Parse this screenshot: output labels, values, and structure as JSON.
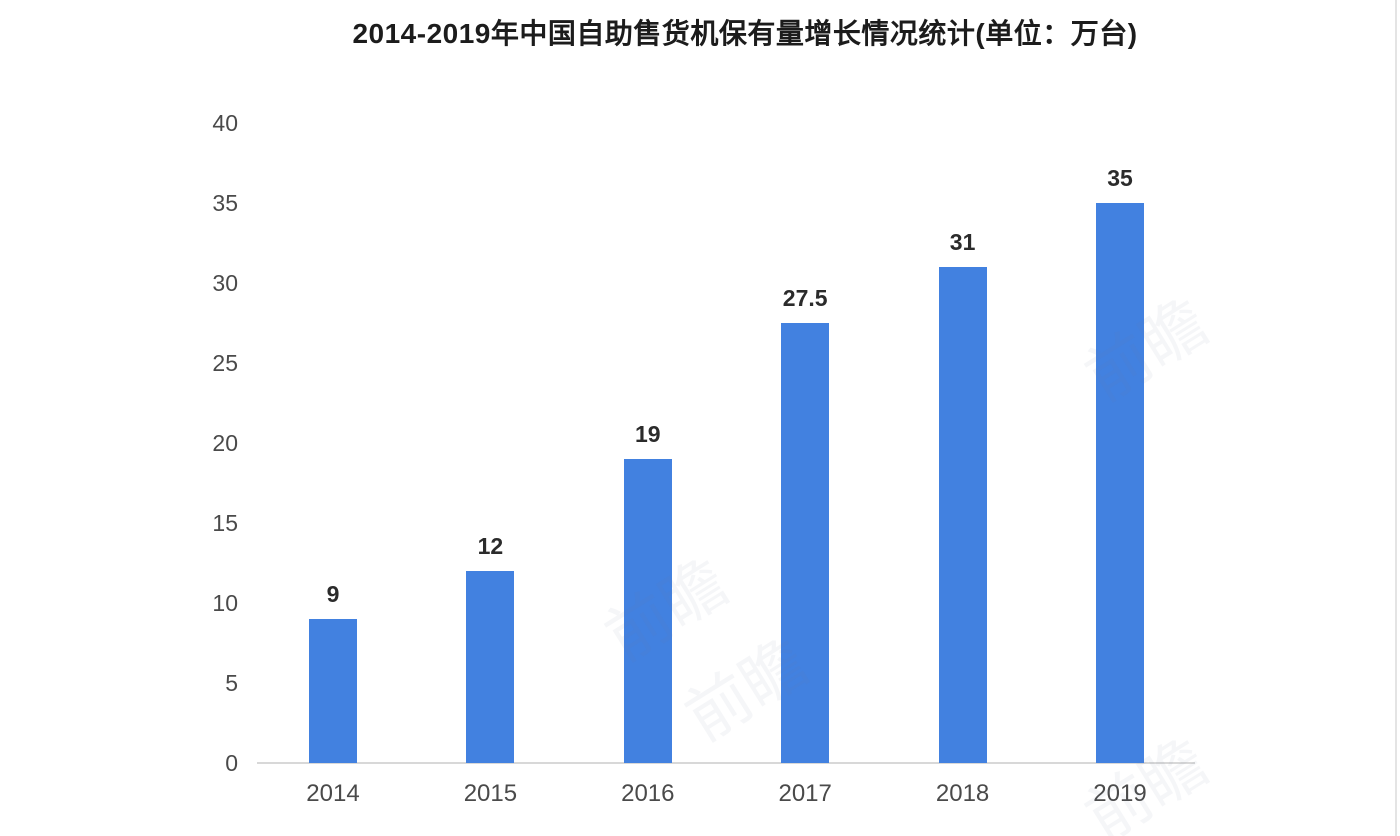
{
  "page": {
    "background": "#ffffff",
    "right_border_color": "#e4e4e4"
  },
  "chart_data": {
    "type": "bar",
    "title": "2014-2019年中国自助售货机保有量增长情况统计(单位：万台)",
    "categories": [
      "2014",
      "2015",
      "2016",
      "2017",
      "2018",
      "2019"
    ],
    "values": [
      9,
      12,
      19,
      27.5,
      31,
      35
    ],
    "value_labels": [
      "9",
      "12",
      "19",
      "27.5",
      "31",
      "35"
    ],
    "unit": "万台",
    "xlabel": "",
    "ylabel": "",
    "ylim": [
      0,
      40
    ],
    "yticks": [
      0,
      5,
      10,
      15,
      20,
      25,
      30,
      35,
      40
    ],
    "grid": false,
    "legend": false,
    "bar_color": "#4281e0",
    "title_color": "#1c1c1c",
    "axis_label_color": "#4a4a4a",
    "value_label_color": "#2b2b2b",
    "baseline_color": "#d8d8d8"
  },
  "watermark": {
    "text": "前瞻",
    "color": "rgba(120, 130, 150, 0.07)"
  }
}
